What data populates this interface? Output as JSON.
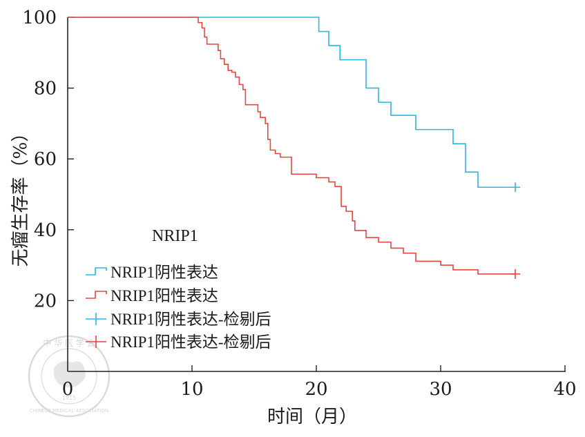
{
  "chart_data": {
    "type": "line",
    "step": true,
    "xlabel": "时间（月）",
    "ylabel": "无瘤生存率（%）",
    "xlim": [
      0,
      40
    ],
    "ylim": [
      0,
      100
    ],
    "x_ticks": [
      0,
      10,
      20,
      30,
      40
    ],
    "y_ticks": [
      20,
      40,
      60,
      80,
      100
    ],
    "grid": false,
    "legend": {
      "title": "NRIP1",
      "position": "lower-left",
      "entries": [
        {
          "label": "NRIP1阴性表达",
          "color": "#29b6e8",
          "style": "step"
        },
        {
          "label": "NRIP1阳性表达",
          "color": "#e8453c",
          "style": "step"
        },
        {
          "label": "NRIP1阴性表达-检剔后",
          "color": "#29b6e8",
          "style": "censor"
        },
        {
          "label": "NRIP1阳性表达-检剔后",
          "color": "#e8453c",
          "style": "censor"
        }
      ]
    },
    "series": [
      {
        "name": "NRIP1阴性表达",
        "color": "#29b6e8",
        "points": [
          [
            0,
            100
          ],
          [
            20.2,
            96
          ],
          [
            21,
            92
          ],
          [
            21.9,
            88
          ],
          [
            24,
            80
          ],
          [
            25,
            76
          ],
          [
            26,
            72.3
          ],
          [
            28,
            68.3
          ],
          [
            31,
            64.3
          ],
          [
            32,
            56.3
          ],
          [
            33,
            52
          ],
          [
            36,
            52
          ]
        ],
        "censored": [
          [
            36,
            52
          ]
        ]
      },
      {
        "name": "NRIP1阳性表达",
        "color": "#e8453c",
        "points": [
          [
            0,
            100
          ],
          [
            10.3,
            100
          ],
          [
            10.5,
            98.5
          ],
          [
            10.8,
            97
          ],
          [
            11,
            94.4
          ],
          [
            11.2,
            92.4
          ],
          [
            12.1,
            90.6
          ],
          [
            12.3,
            88.3
          ],
          [
            12.6,
            86.7
          ],
          [
            12.9,
            85
          ],
          [
            13.2,
            84.5
          ],
          [
            13.5,
            83.1
          ],
          [
            13.8,
            81
          ],
          [
            14.1,
            79.6
          ],
          [
            14.3,
            75.3
          ],
          [
            15.3,
            73.3
          ],
          [
            15.5,
            71.7
          ],
          [
            15.9,
            70
          ],
          [
            16.1,
            65.5
          ],
          [
            16.3,
            62.5
          ],
          [
            16.7,
            61.5
          ],
          [
            17.1,
            60.5
          ],
          [
            18,
            55.7
          ],
          [
            20,
            54.7
          ],
          [
            21,
            53.5
          ],
          [
            21.5,
            52.2
          ],
          [
            22,
            46.6
          ],
          [
            22.4,
            45.2
          ],
          [
            22.9,
            42.5
          ],
          [
            23.1,
            39.8
          ],
          [
            24,
            37.8
          ],
          [
            25,
            36.5
          ],
          [
            26,
            34.8
          ],
          [
            27,
            33.4
          ],
          [
            28,
            31.1
          ],
          [
            30,
            30
          ],
          [
            31,
            28.7
          ],
          [
            33,
            27.5
          ],
          [
            36,
            27.5
          ]
        ],
        "censored": [
          [
            36,
            27.5
          ]
        ]
      }
    ]
  },
  "watermark": {
    "top_text": "中 华 医 学 会",
    "ring_text": "CHINESE MEDICAL ASSOCIATION",
    "year": "1915"
  }
}
